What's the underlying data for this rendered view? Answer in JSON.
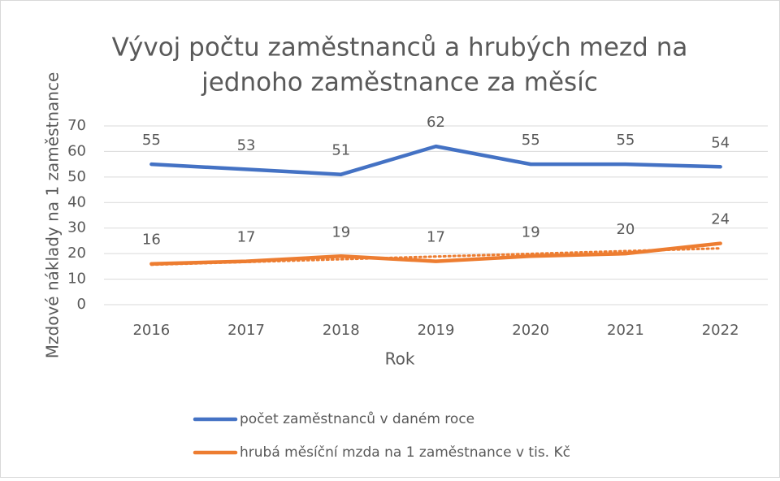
{
  "chart_data": {
    "type": "line",
    "title": [
      "Vývoj počtu zaměstnanců a hrubých mezd na",
      "jednoho zaměstnance za měsíc"
    ],
    "x_label": "Rok",
    "y_label": "Mzdové náklady na 1 zaměstnance",
    "categories": [
      "2016",
      "2017",
      "2018",
      "2019",
      "2020",
      "2021",
      "2022"
    ],
    "series": [
      {
        "name": "počet zaměstnanců v daném roce",
        "color": "#4472c4",
        "values": [
          55,
          53,
          51,
          62,
          55,
          55,
          54
        ]
      },
      {
        "name": "hrubá měsíční mzda na 1 zaměstnance v tis. Kč",
        "color": "#ed7d31",
        "values": [
          16,
          17,
          19,
          17,
          19,
          20,
          24
        ],
        "trendline": "linear"
      }
    ],
    "ylim": [
      0,
      70
    ],
    "yticks": [
      0,
      10,
      20,
      30,
      40,
      50,
      60,
      70
    ],
    "grid": true,
    "legend": "bottom",
    "data_labels": true
  }
}
